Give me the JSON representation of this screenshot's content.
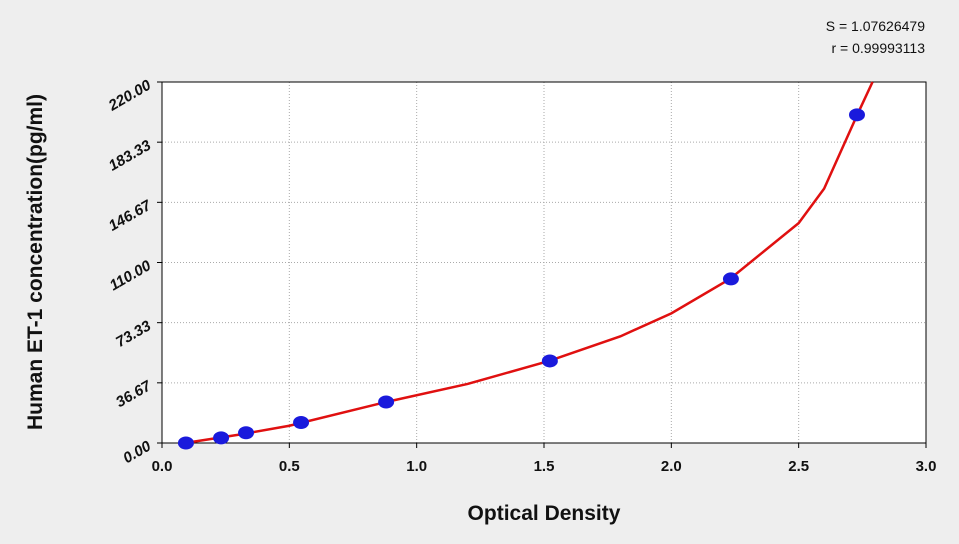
{
  "chart_data": {
    "type": "scatter",
    "annotations": [
      "S = 1.07626479",
      "r = 0.99993113"
    ],
    "xlabel": "Optical Density",
    "ylabel": "Human ET-1 concentration(pg/ml)",
    "xlim": [
      0,
      3
    ],
    "ylim": [
      0,
      220
    ],
    "xticks": [
      {
        "value": 0,
        "label": "0.0"
      },
      0.5,
      {
        "value": 1,
        "label": "1.0"
      },
      1.5,
      {
        "value": 2,
        "label": "2.0"
      },
      2.5,
      {
        "value": 3,
        "label": "3.0"
      }
    ],
    "yticks": [
      {
        "value": 0,
        "label": "0.00"
      },
      36.67,
      73.33,
      {
        "value": 110,
        "label": "110.00"
      },
      146.67,
      183.33,
      {
        "value": 220,
        "label": "220.00"
      }
    ],
    "grid": true,
    "series": [
      {
        "color": "#1a1adc",
        "mode": "markers",
        "x": [
          0.094,
          0.232,
          0.33,
          0.546,
          0.88,
          1.523,
          2.234,
          2.729
        ],
        "values": [
          0,
          3.125,
          6.25,
          12.5,
          25,
          50,
          100,
          200
        ]
      },
      {
        "color": "#e01010",
        "mode": "line",
        "x": [
          0.09,
          0.3,
          0.5,
          0.88,
          1.2,
          1.52,
          1.8,
          2.0,
          2.23,
          2.5,
          2.6,
          2.73,
          2.79
        ],
        "values": [
          0,
          5,
          10.5,
          25,
          36,
          50,
          65,
          79,
          100,
          134,
          155,
          200,
          220
        ]
      }
    ]
  }
}
